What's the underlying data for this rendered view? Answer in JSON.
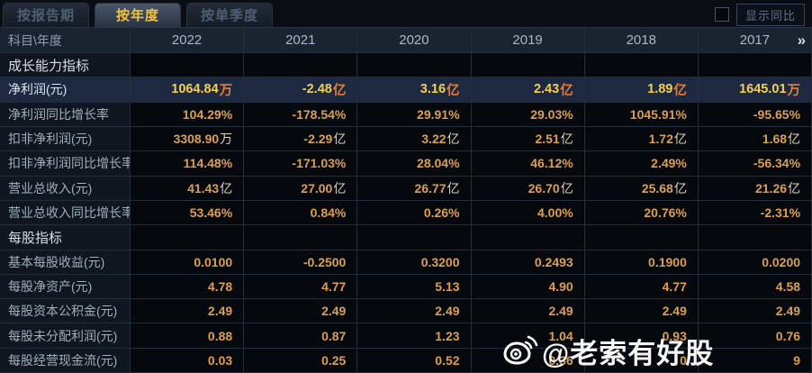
{
  "tabs": [
    {
      "label": "按报告期",
      "active": false
    },
    {
      "label": "按年度",
      "active": true
    },
    {
      "label": "按单季度",
      "active": false
    }
  ],
  "controls": {
    "show_yoy_checkbox_checked": false,
    "show_yoy_label": "显示同比"
  },
  "table": {
    "corner_header": "科目\\年度",
    "year_columns": [
      "2022",
      "2021",
      "2020",
      "2019",
      "2018",
      "2017"
    ],
    "more_years_icon": "»",
    "rows": [
      {
        "type": "section",
        "label": "成长能力指标"
      },
      {
        "type": "data",
        "label": "净利润(元)",
        "highlight": true,
        "values": [
          {
            "v": "1064.84",
            "u": "万"
          },
          {
            "v": "-2.48",
            "u": "亿"
          },
          {
            "v": "3.16",
            "u": "亿"
          },
          {
            "v": "2.43",
            "u": "亿"
          },
          {
            "v": "1.89",
            "u": "亿"
          },
          {
            "v": "1645.01",
            "u": "万"
          }
        ]
      },
      {
        "type": "data",
        "label": "净利润同比增长率",
        "values": [
          {
            "v": "104.29%",
            "u": ""
          },
          {
            "v": "-178.54%",
            "u": ""
          },
          {
            "v": "29.91%",
            "u": ""
          },
          {
            "v": "29.03%",
            "u": ""
          },
          {
            "v": "1045.91%",
            "u": ""
          },
          {
            "v": "-95.65%",
            "u": ""
          }
        ]
      },
      {
        "type": "data",
        "label": "扣非净利润(元)",
        "values": [
          {
            "v": "3308.90",
            "u": "万"
          },
          {
            "v": "-2.29",
            "u": "亿"
          },
          {
            "v": "3.22",
            "u": "亿"
          },
          {
            "v": "2.51",
            "u": "亿"
          },
          {
            "v": "1.72",
            "u": "亿"
          },
          {
            "v": "1.68",
            "u": "亿"
          }
        ]
      },
      {
        "type": "data",
        "label": "扣非净利润同比增长率",
        "values": [
          {
            "v": "114.48%",
            "u": ""
          },
          {
            "v": "-171.03%",
            "u": ""
          },
          {
            "v": "28.04%",
            "u": ""
          },
          {
            "v": "46.12%",
            "u": ""
          },
          {
            "v": "2.49%",
            "u": ""
          },
          {
            "v": "-56.34%",
            "u": ""
          }
        ]
      },
      {
        "type": "data",
        "label": "营业总收入(元)",
        "values": [
          {
            "v": "41.43",
            "u": "亿"
          },
          {
            "v": "27.00",
            "u": "亿"
          },
          {
            "v": "26.77",
            "u": "亿"
          },
          {
            "v": "26.70",
            "u": "亿"
          },
          {
            "v": "25.68",
            "u": "亿"
          },
          {
            "v": "21.26",
            "u": "亿"
          }
        ]
      },
      {
        "type": "data",
        "label": "营业总收入同比增长率",
        "values": [
          {
            "v": "53.46%",
            "u": ""
          },
          {
            "v": "0.84%",
            "u": ""
          },
          {
            "v": "0.26%",
            "u": ""
          },
          {
            "v": "4.00%",
            "u": ""
          },
          {
            "v": "20.76%",
            "u": ""
          },
          {
            "v": "-2.31%",
            "u": ""
          }
        ]
      },
      {
        "type": "section",
        "label": "每股指标"
      },
      {
        "type": "data",
        "label": "基本每股收益(元)",
        "values": [
          {
            "v": "0.0100",
            "u": ""
          },
          {
            "v": "-0.2500",
            "u": ""
          },
          {
            "v": "0.3200",
            "u": ""
          },
          {
            "v": "0.2493",
            "u": ""
          },
          {
            "v": "0.1900",
            "u": ""
          },
          {
            "v": "0.0200",
            "u": ""
          }
        ]
      },
      {
        "type": "data",
        "label": "每股净资产(元)",
        "values": [
          {
            "v": "4.78",
            "u": ""
          },
          {
            "v": "4.77",
            "u": ""
          },
          {
            "v": "5.13",
            "u": ""
          },
          {
            "v": "4.90",
            "u": ""
          },
          {
            "v": "4.77",
            "u": ""
          },
          {
            "v": "4.58",
            "u": ""
          }
        ]
      },
      {
        "type": "data",
        "label": "每股资本公积金(元)",
        "values": [
          {
            "v": "2.49",
            "u": ""
          },
          {
            "v": "2.49",
            "u": ""
          },
          {
            "v": "2.49",
            "u": ""
          },
          {
            "v": "2.49",
            "u": ""
          },
          {
            "v": "2.49",
            "u": ""
          },
          {
            "v": "2.49",
            "u": ""
          }
        ]
      },
      {
        "type": "data",
        "label": "每股未分配利润(元)",
        "values": [
          {
            "v": "0.88",
            "u": ""
          },
          {
            "v": "0.87",
            "u": ""
          },
          {
            "v": "1.23",
            "u": ""
          },
          {
            "v": "1.04",
            "u": ""
          },
          {
            "v": "0.93",
            "u": ""
          },
          {
            "v": "0.76",
            "u": ""
          }
        ]
      },
      {
        "type": "data",
        "label": "每股经营现金流(元)",
        "values": [
          {
            "v": "0.03",
            "u": ""
          },
          {
            "v": "0.25",
            "u": ""
          },
          {
            "v": "0.52",
            "u": ""
          },
          {
            "v": "0.36",
            "u": ""
          },
          {
            "v": "0",
            "u": ""
          },
          {
            "v": "9",
            "u": ""
          }
        ]
      }
    ]
  },
  "watermark": {
    "text": "@老索有好股"
  },
  "colors": {
    "accent_gold": "#f2c23c",
    "value_orange": "#dc9f4e",
    "highlight_value": "#f6cf4f",
    "highlight_suffix": "#e87f35",
    "highlight_row_bg": "#1c2940",
    "grid_line": "#232d3a",
    "page_bg": "#0a0e14"
  }
}
